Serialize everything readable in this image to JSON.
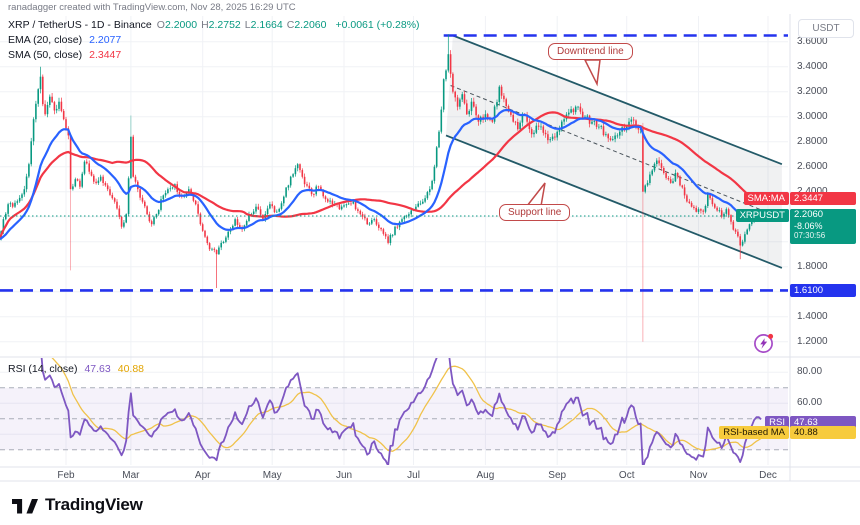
{
  "header": {
    "attribution": "ranadagger created with TradingView.com, Nov 28, 2025 16:29 UTC"
  },
  "watermark": {
    "brand": "TradingView"
  },
  "legend": {
    "title": "XRP / TetherUS - 1D - Binance",
    "ohlc": [
      [
        "O",
        "2.2000"
      ],
      [
        "H",
        "2.2752"
      ],
      [
        "L",
        "2.1664"
      ],
      [
        "C",
        "2.2060"
      ]
    ],
    "change": "+0.0061 (+0.28%)",
    "ema_label": "EMA (20, close)",
    "ema_value": "2.2077",
    "sma_label": "SMA (50, close)",
    "sma_value": "2.3447",
    "rsi_label": "RSI (14, close)",
    "rsi_value": "47.63",
    "rsi_ma_value": "40.88"
  },
  "callouts": {
    "downtrend": "Downtrend line",
    "support": "Support line"
  },
  "price_badges": {
    "sma": {
      "label": "SMA:MA",
      "value": "2.3447",
      "color": "#F23645",
      "price": 2.3447
    },
    "ema": {
      "label": "EMA",
      "value": "2.2077",
      "color": "#2962FF",
      "price": 2.2077
    },
    "symbol": {
      "label": "XRPUSDT",
      "value": "2.2060",
      "change": "-8.06%",
      "countdown": "07:30:56",
      "color": "#089981",
      "price": 2.206
    },
    "level": {
      "value": "1.6100",
      "color": "#2433EE",
      "price": 1.61
    }
  },
  "rsi_badges": {
    "rsi": {
      "label": "RSI",
      "value": "47.63",
      "color": "#7E57C2",
      "text": "#ffffff",
      "v": 47.63
    },
    "rsi_ma": {
      "label": "RSI-based MA",
      "value": "40.88",
      "color": "#F7CB3D",
      "text": "#201700",
      "v": 40.88
    }
  },
  "colors": {
    "up": "#089981",
    "down": "#F23645",
    "ema": "#2962FF",
    "sma": "#F23645",
    "rsi": "#7E57C2",
    "rsi_ma": "#F0C24A",
    "line_blue": "#2433EE",
    "channel": "#235A68",
    "channel_fill": "rgba(130,140,150,0.12)",
    "channel_mid": "#4A545C",
    "current_price": "#089981",
    "grid": "#F0F2F6",
    "separator": "#E0E3EB",
    "rsi_band_fill": "rgba(126,87,194,0.08)",
    "rsi_dash": "#A9ADB8"
  },
  "chart_data": {
    "type": "candlestick",
    "title": "XRP / TetherUS - 1D - Binance",
    "symbol": "XRPUSDT",
    "interval": "1D",
    "exchange": "Binance",
    "current": {
      "open": 2.2,
      "high": 2.2752,
      "low": 2.1664,
      "close": 2.206,
      "change": "+0.0061",
      "change_pct": "+0.28%"
    },
    "indicators": {
      "ema20": 2.2077,
      "sma50": 2.3447,
      "rsi14": 47.63,
      "rsi_based_ma": 40.88
    },
    "y_axis": {
      "currency": "USDT",
      "ticks": [
        3.6,
        3.4,
        3.2,
        3.0,
        2.8,
        2.6,
        2.4,
        2.2,
        2.0,
        1.8,
        1.6,
        1.4,
        1.2
      ]
    },
    "x_axis": {
      "months": [
        {
          "label": "Feb",
          "day": 29
        },
        {
          "label": "Mar",
          "day": 57
        },
        {
          "label": "Apr",
          "day": 88
        },
        {
          "label": "May",
          "day": 118
        },
        {
          "label": "Jun",
          "day": 149
        },
        {
          "label": "Jul",
          "day": 179
        },
        {
          "label": "Aug",
          "day": 210
        },
        {
          "label": "Sep",
          "day": 241
        },
        {
          "label": "Oct",
          "day": 271
        },
        {
          "label": "Nov",
          "day": 302
        },
        {
          "label": "Dec",
          "day": 332
        }
      ],
      "days_total": 330
    },
    "levels": {
      "resistance_price": 3.65,
      "resistance_from_day": 192,
      "support_price": 1.61,
      "support_label": "1.6100",
      "current_price_line": 2.206
    },
    "channel": {
      "upper": [
        [
          196,
          3.65
        ],
        [
          338,
          2.62
        ]
      ],
      "lower": [
        [
          193,
          2.85
        ],
        [
          338,
          1.79
        ]
      ],
      "mid": [
        [
          195,
          3.25
        ],
        [
          331,
          2.24
        ]
      ]
    },
    "price_anchors": [
      [
        0,
        2.02
      ],
      [
        2,
        2.18
      ],
      [
        4,
        2.3
      ],
      [
        6,
        2.28
      ],
      [
        9,
        2.35
      ],
      [
        11,
        2.42
      ],
      [
        13,
        2.62
      ],
      [
        15,
        2.98
      ],
      [
        17,
        3.22
      ],
      [
        18,
        3.32
      ],
      [
        19,
        3.1
      ],
      [
        20,
        3.02
      ],
      [
        22,
        3.16
      ],
      [
        24,
        3.05
      ],
      [
        26,
        3.12
      ],
      [
        28,
        2.98
      ],
      [
        30,
        2.85
      ],
      [
        31,
        2.42
      ],
      [
        33,
        2.5
      ],
      [
        35,
        2.44
      ],
      [
        37,
        2.64
      ],
      [
        39,
        2.56
      ],
      [
        41,
        2.48
      ],
      [
        44,
        2.52
      ],
      [
        47,
        2.42
      ],
      [
        50,
        2.32
      ],
      [
        53,
        2.12
      ],
      [
        55,
        2.22
      ],
      [
        57,
        2.84
      ],
      [
        58,
        2.52
      ],
      [
        60,
        2.42
      ],
      [
        62,
        2.32
      ],
      [
        64,
        2.22
      ],
      [
        66,
        2.14
      ],
      [
        68,
        2.22
      ],
      [
        70,
        2.34
      ],
      [
        73,
        2.42
      ],
      [
        76,
        2.46
      ],
      [
        79,
        2.36
      ],
      [
        82,
        2.42
      ],
      [
        85,
        2.3
      ],
      [
        87,
        2.14
      ],
      [
        89,
        2.04
      ],
      [
        91,
        1.94
      ],
      [
        94,
        1.9
      ],
      [
        96,
        1.99
      ],
      [
        99,
        2.08
      ],
      [
        102,
        2.18
      ],
      [
        105,
        2.1
      ],
      [
        108,
        2.22
      ],
      [
        111,
        2.28
      ],
      [
        114,
        2.18
      ],
      [
        117,
        2.3
      ],
      [
        120,
        2.24
      ],
      [
        123,
        2.36
      ],
      [
        126,
        2.52
      ],
      [
        129,
        2.62
      ],
      [
        132,
        2.46
      ],
      [
        135,
        2.38
      ],
      [
        138,
        2.44
      ],
      [
        141,
        2.34
      ],
      [
        144,
        2.3
      ],
      [
        147,
        2.26
      ],
      [
        150,
        2.3
      ],
      [
        153,
        2.32
      ],
      [
        156,
        2.22
      ],
      [
        159,
        2.14
      ],
      [
        162,
        2.18
      ],
      [
        165,
        2.1
      ],
      [
        168,
        1.99
      ],
      [
        171,
        2.12
      ],
      [
        174,
        2.18
      ],
      [
        177,
        2.22
      ],
      [
        180,
        2.28
      ],
      [
        183,
        2.32
      ],
      [
        186,
        2.42
      ],
      [
        188,
        2.6
      ],
      [
        190,
        2.88
      ],
      [
        192,
        3.3
      ],
      [
        194,
        3.5
      ],
      [
        196,
        3.2
      ],
      [
        198,
        3.08
      ],
      [
        200,
        3.18
      ],
      [
        202,
        3.02
      ],
      [
        204,
        3.12
      ],
      [
        207,
        2.96
      ],
      [
        210,
        3.02
      ],
      [
        213,
        2.96
      ],
      [
        216,
        3.24
      ],
      [
        218,
        3.14
      ],
      [
        220,
        3.04
      ],
      [
        222,
        2.96
      ],
      [
        224,
        2.9
      ],
      [
        226,
        3.02
      ],
      [
        228,
        2.96
      ],
      [
        230,
        2.86
      ],
      [
        233,
        2.92
      ],
      [
        236,
        2.86
      ],
      [
        238,
        2.82
      ],
      [
        241,
        2.88
      ],
      [
        244,
        2.98
      ],
      [
        247,
        3.06
      ],
      [
        250,
        3.08
      ],
      [
        253,
        3.0
      ],
      [
        256,
        2.96
      ],
      [
        259,
        2.92
      ],
      [
        262,
        2.86
      ],
      [
        265,
        2.82
      ],
      [
        268,
        2.88
      ],
      [
        271,
        2.92
      ],
      [
        274,
        2.97
      ],
      [
        277,
        2.9
      ],
      [
        278,
        2.4
      ],
      [
        280,
        2.47
      ],
      [
        282,
        2.57
      ],
      [
        284,
        2.65
      ],
      [
        286,
        2.59
      ],
      [
        288,
        2.51
      ],
      [
        290,
        2.47
      ],
      [
        292,
        2.55
      ],
      [
        294,
        2.45
      ],
      [
        296,
        2.37
      ],
      [
        298,
        2.31
      ],
      [
        300,
        2.27
      ],
      [
        302,
        2.26
      ],
      [
        304,
        2.24
      ],
      [
        306,
        2.38
      ],
      [
        308,
        2.3
      ],
      [
        310,
        2.25
      ],
      [
        312,
        2.2
      ],
      [
        314,
        2.26
      ],
      [
        316,
        2.16
      ],
      [
        318,
        2.08
      ],
      [
        320,
        1.97
      ],
      [
        322,
        2.06
      ],
      [
        324,
        2.14
      ],
      [
        326,
        2.2
      ],
      [
        328,
        2.22
      ],
      [
        329,
        2.206
      ]
    ],
    "wick_events": {
      "18": {
        "h": 3.4
      },
      "31": {
        "l": 1.77
      },
      "57": {
        "h": 3.01
      },
      "94": {
        "l": 1.63
      },
      "194": {
        "h": 3.66
      },
      "278": {
        "o": 2.9,
        "h": 2.95,
        "l": 1.2,
        "c": 2.4
      },
      "320": {
        "l": 1.86
      }
    },
    "rsi_pane": {
      "ticks": [
        {
          "label": "80.00",
          "v": 80
        },
        {
          "label": "60.00",
          "v": 60
        }
      ],
      "dashed_levels": [
        70,
        50,
        30
      ],
      "band": [
        30,
        70
      ]
    }
  },
  "axis": {
    "usdt_label": "USDT"
  }
}
